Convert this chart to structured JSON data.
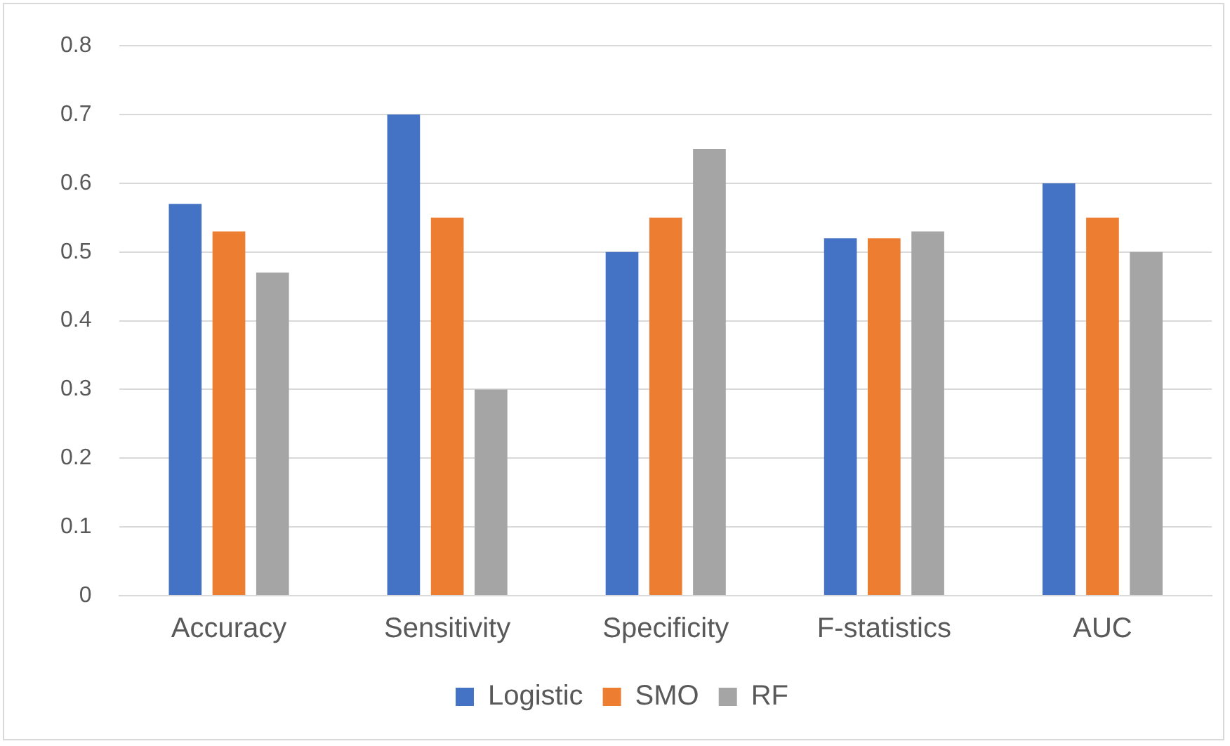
{
  "chart_data": {
    "type": "bar",
    "categories": [
      "Accuracy",
      "Sensitivity",
      "Specificity",
      "F-statistics",
      "AUC"
    ],
    "series": [
      {
        "name": "Logistic",
        "color": "#4472c4",
        "values": [
          0.57,
          0.7,
          0.5,
          0.52,
          0.6
        ]
      },
      {
        "name": "SMO",
        "color": "#ed7d31",
        "values": [
          0.53,
          0.55,
          0.55,
          0.52,
          0.55
        ]
      },
      {
        "name": "RF",
        "color": "#a5a5a5",
        "values": [
          0.47,
          0.3,
          0.65,
          0.53,
          0.5
        ]
      }
    ],
    "ylim": [
      0,
      0.8
    ],
    "yticks": [
      0,
      0.1,
      0.2,
      0.3,
      0.4,
      0.5,
      0.6,
      0.7,
      0.8
    ],
    "grid": "y",
    "legend": "bottom"
  }
}
